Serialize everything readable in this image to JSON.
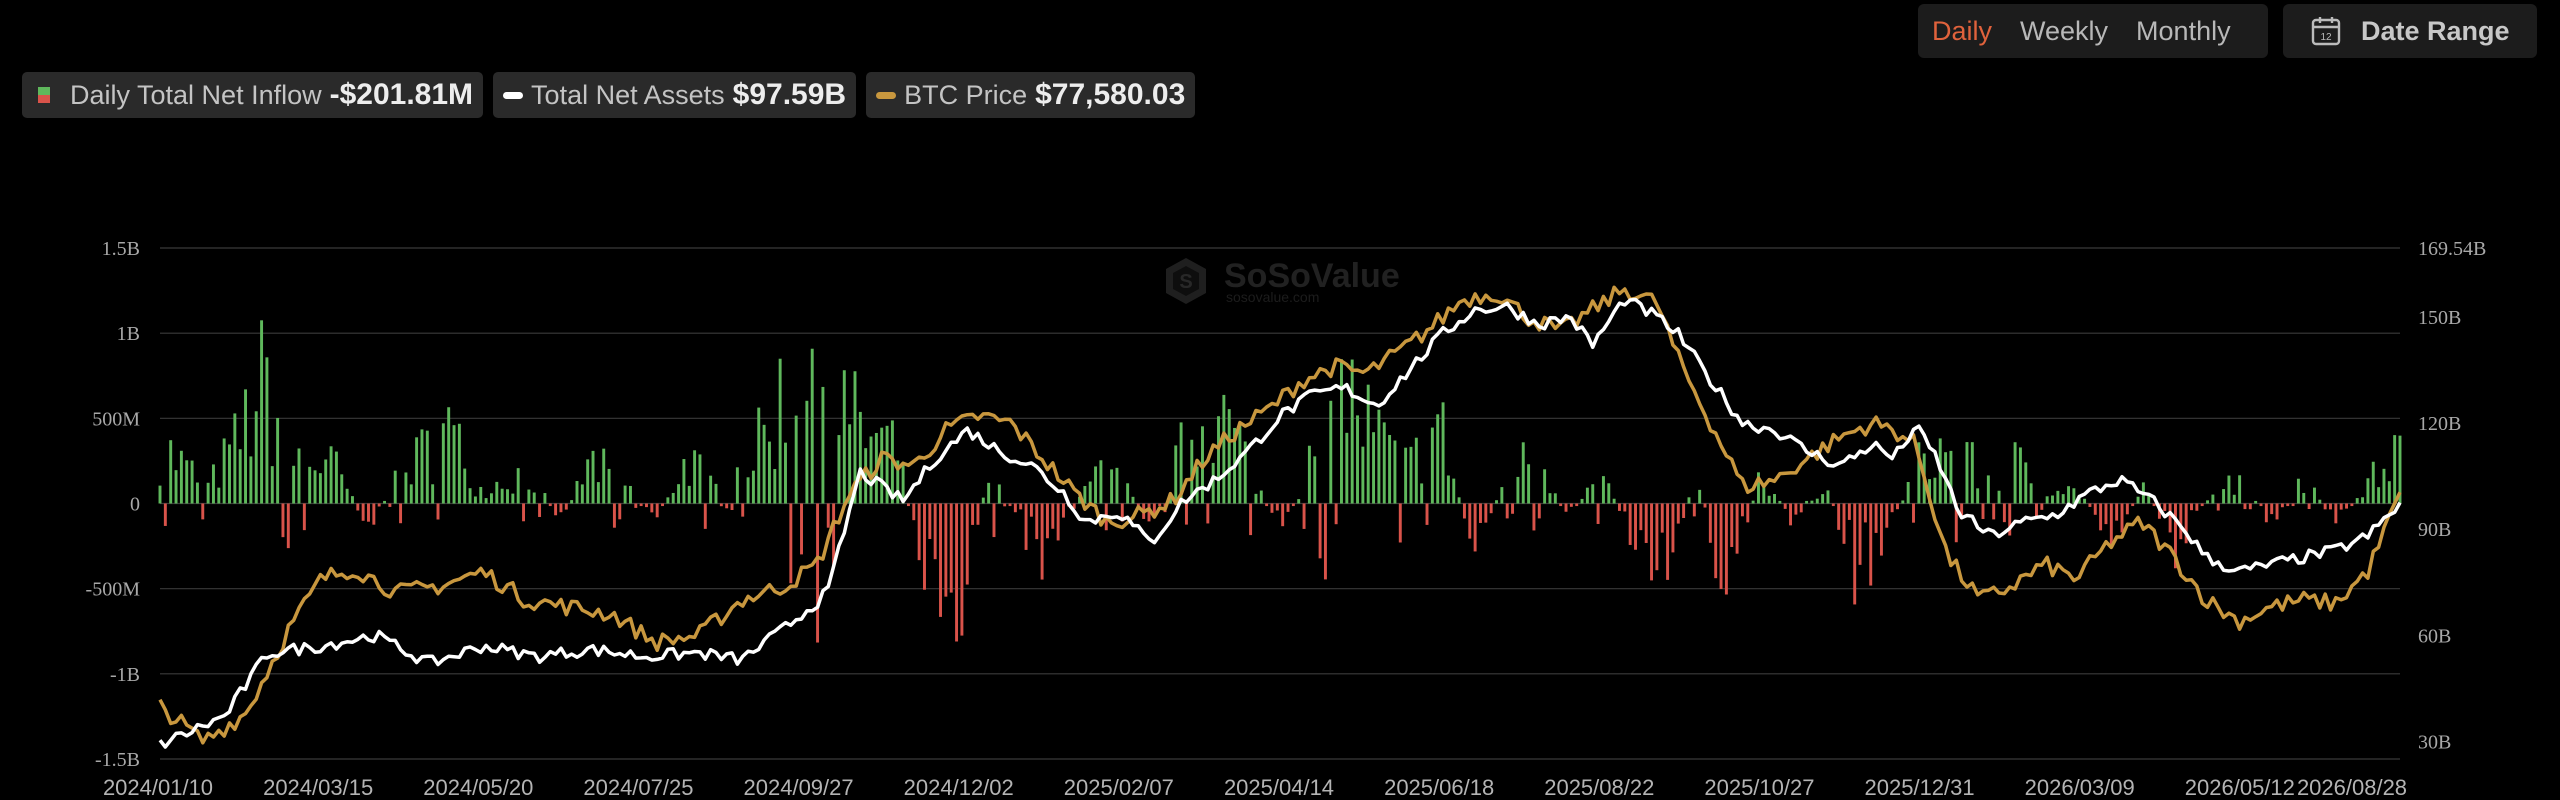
{
  "controls": {
    "periods": [
      "Daily",
      "Weekly",
      "Monthly"
    ],
    "active_period": "Daily",
    "date_range_label": "Date Range",
    "date_range_icon_day": "12"
  },
  "legend": {
    "inflow_label": "Daily Total Net Inflow",
    "inflow_value": "-$201.81M",
    "assets_label": "Total Net Assets",
    "assets_value": "$97.59B",
    "btc_label": "BTC Price",
    "btc_value": "$77,580.03"
  },
  "watermark": {
    "name": "SoSoValue",
    "url": "sosovalue.com"
  },
  "colors": {
    "positive_bar": "#5fb85c",
    "negative_bar": "#d9534a",
    "assets_line": "#ffffff",
    "btc_line": "#c8973e",
    "active_period": "#e0623c"
  },
  "chart_data": {
    "type": "bar",
    "x_ticks": [
      "2024/01/10",
      "2024/03/15",
      "2024/05/20",
      "2024/07/25",
      "2024/09/27",
      "2024/12/02",
      "2025/02/07",
      "2025/04/14",
      "2025/06/18",
      "2025/08/22",
      "2025/10/27",
      "2025/12/31",
      "2026/03/09",
      "2026/05/12",
      "2026/08/28"
    ],
    "y_left_ticks": [
      "1.5B",
      "1B",
      "500M",
      "0",
      "-500M",
      "-1B",
      "-1.5B"
    ],
    "y_left_range": [
      -1500,
      1500
    ],
    "y_left_unit": "M USD",
    "y_right_ticks": [
      "169.54B",
      "150B",
      "120B",
      "90B",
      "60B",
      "30B"
    ],
    "y_right_range": [
      25,
      169.54
    ],
    "y_right_unit": "B USD",
    "inflow_anchors_M": [
      [
        0,
        420
      ],
      [
        6,
        120
      ],
      [
        10,
        480
      ],
      [
        13,
        880
      ],
      [
        16,
        350
      ],
      [
        22,
        260
      ],
      [
        26,
        -180
      ],
      [
        30,
        200
      ],
      [
        36,
        540
      ],
      [
        40,
        100
      ],
      [
        46,
        230
      ],
      [
        50,
        -110
      ],
      [
        54,
        300
      ],
      [
        58,
        140
      ],
      [
        62,
        -90
      ],
      [
        66,
        320
      ],
      [
        70,
        80
      ],
      [
        76,
        500
      ],
      [
        80,
        1150
      ],
      [
        84,
        900
      ],
      [
        86,
        650
      ],
      [
        88,
        520
      ],
      [
        92,
        400
      ],
      [
        95,
        -350
      ],
      [
        100,
        -700
      ],
      [
        104,
        300
      ],
      [
        110,
        -420
      ],
      [
        116,
        250
      ],
      [
        120,
        180
      ],
      [
        124,
        -180
      ],
      [
        128,
        420
      ],
      [
        132,
        700
      ],
      [
        136,
        320
      ],
      [
        140,
        -260
      ],
      [
        144,
        360
      ],
      [
        148,
        820
      ],
      [
        152,
        500
      ],
      [
        156,
        260
      ],
      [
        160,
        580
      ],
      [
        164,
        -320
      ],
      [
        168,
        140
      ],
      [
        172,
        400
      ],
      [
        176,
        -120
      ],
      [
        180,
        220
      ],
      [
        184,
        -230
      ],
      [
        188,
        -500
      ],
      [
        192,
        180
      ],
      [
        196,
        -650
      ],
      [
        200,
        240
      ],
      [
        204,
        -120
      ],
      [
        208,
        160
      ],
      [
        212,
        -500
      ],
      [
        216,
        -200
      ],
      [
        220,
        300
      ],
      [
        224,
        420
      ],
      [
        228,
        180
      ],
      [
        232,
        290
      ],
      [
        236,
        130
      ],
      [
        240,
        80
      ],
      [
        244,
        -250
      ],
      [
        248,
        120
      ],
      [
        252,
        -300
      ],
      [
        256,
        60
      ],
      [
        260,
        190
      ],
      [
        264,
        -150
      ],
      [
        268,
        220
      ],
      [
        272,
        -180
      ],
      [
        276,
        150
      ],
      [
        280,
        400
      ]
    ],
    "net_assets_B": [
      [
        0,
        29
      ],
      [
        12,
        37
      ],
      [
        20,
        55
      ],
      [
        30,
        57
      ],
      [
        40,
        60
      ],
      [
        50,
        52
      ],
      [
        60,
        57
      ],
      [
        70,
        54
      ],
      [
        80,
        56
      ],
      [
        90,
        54
      ],
      [
        100,
        55
      ],
      [
        108,
        53
      ],
      [
        116,
        62
      ],
      [
        124,
        72
      ],
      [
        130,
        106
      ],
      [
        134,
        102
      ],
      [
        138,
        98
      ],
      [
        144,
        110
      ],
      [
        150,
        118
      ],
      [
        156,
        112
      ],
      [
        162,
        108
      ],
      [
        168,
        100
      ],
      [
        172,
        92
      ],
      [
        178,
        95
      ],
      [
        184,
        86
      ],
      [
        190,
        98
      ],
      [
        196,
        104
      ],
      [
        202,
        112
      ],
      [
        208,
        122
      ],
      [
        214,
        128
      ],
      [
        220,
        130
      ],
      [
        226,
        125
      ],
      [
        232,
        135
      ],
      [
        238,
        145
      ],
      [
        244,
        152
      ],
      [
        250,
        153
      ],
      [
        256,
        148
      ],
      [
        262,
        150
      ],
      [
        266,
        142
      ],
      [
        272,
        155
      ],
      [
        278,
        150
      ],
      [
        282,
        145
      ],
      [
        288,
        132
      ],
      [
        294,
        120
      ],
      [
        300,
        118
      ],
      [
        306,
        112
      ],
      [
        312,
        108
      ],
      [
        318,
        114
      ],
      [
        322,
        110
      ],
      [
        326,
        119
      ],
      [
        330,
        110
      ],
      [
        334,
        95
      ],
      [
        340,
        88
      ],
      [
        346,
        92
      ],
      [
        352,
        94
      ],
      [
        358,
        100
      ],
      [
        364,
        104
      ],
      [
        370,
        98
      ],
      [
        376,
        90
      ],
      [
        380,
        82
      ],
      [
        386,
        78
      ],
      [
        392,
        80
      ],
      [
        398,
        82
      ],
      [
        404,
        84
      ],
      [
        410,
        88
      ],
      [
        416,
        97
      ]
    ],
    "btc_price_B": [
      [
        0,
        40
      ],
      [
        8,
        30
      ],
      [
        16,
        38
      ],
      [
        24,
        62
      ],
      [
        30,
        76
      ],
      [
        36,
        79
      ],
      [
        44,
        72
      ],
      [
        52,
        74
      ],
      [
        60,
        78
      ],
      [
        68,
        70
      ],
      [
        76,
        68
      ],
      [
        84,
        66
      ],
      [
        92,
        58
      ],
      [
        100,
        60
      ],
      [
        108,
        70
      ],
      [
        116,
        74
      ],
      [
        122,
        80
      ],
      [
        128,
        100
      ],
      [
        134,
        110
      ],
      [
        140,
        108
      ],
      [
        146,
        118
      ],
      [
        152,
        122
      ],
      [
        158,
        120
      ],
      [
        164,
        110
      ],
      [
        170,
        100
      ],
      [
        176,
        92
      ],
      [
        182,
        94
      ],
      [
        188,
        98
      ],
      [
        194,
        110
      ],
      [
        200,
        118
      ],
      [
        206,
        124
      ],
      [
        212,
        132
      ],
      [
        218,
        136
      ],
      [
        224,
        134
      ],
      [
        230,
        140
      ],
      [
        236,
        147
      ],
      [
        242,
        155
      ],
      [
        248,
        157
      ],
      [
        254,
        150
      ],
      [
        260,
        146
      ],
      [
        266,
        152
      ],
      [
        272,
        158
      ],
      [
        278,
        154
      ],
      [
        282,
        138
      ],
      [
        288,
        120
      ],
      [
        294,
        102
      ],
      [
        300,
        104
      ],
      [
        306,
        110
      ],
      [
        312,
        116
      ],
      [
        318,
        120
      ],
      [
        322,
        118
      ],
      [
        326,
        114
      ],
      [
        332,
        82
      ],
      [
        338,
        70
      ],
      [
        344,
        74
      ],
      [
        350,
        80
      ],
      [
        356,
        76
      ],
      [
        362,
        86
      ],
      [
        368,
        92
      ],
      [
        374,
        82
      ],
      [
        380,
        70
      ],
      [
        386,
        64
      ],
      [
        392,
        68
      ],
      [
        398,
        70
      ],
      [
        404,
        69
      ],
      [
        410,
        78
      ],
      [
        416,
        100
      ]
    ]
  }
}
